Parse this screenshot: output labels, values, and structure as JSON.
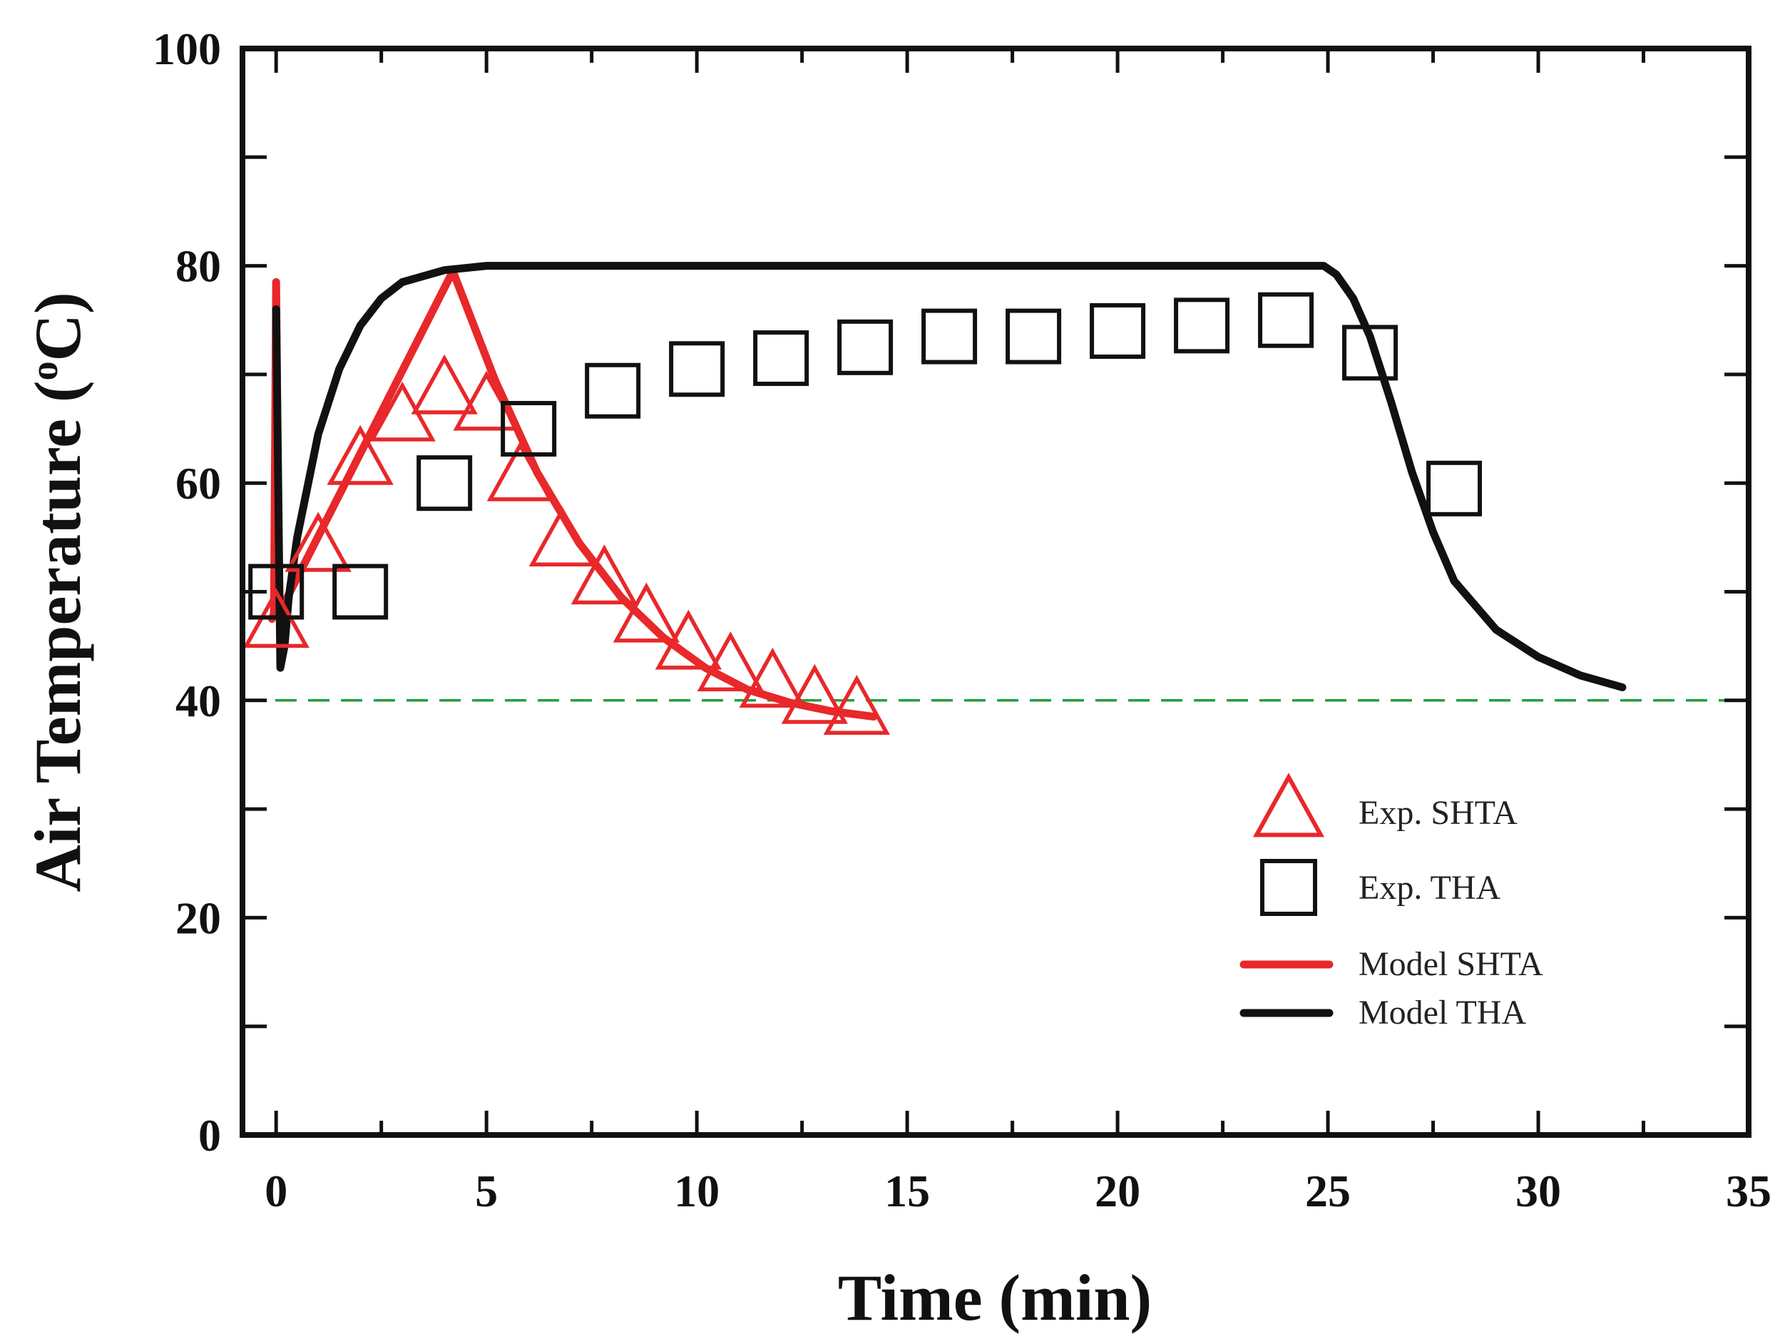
{
  "chart_data": {
    "type": "line",
    "xlabel": "Time (min)",
    "ylabel_main": "Air Temperature (",
    "ylabel_sup": "o",
    "ylabel_end": "C)",
    "xlim": [
      -0.8,
      35
    ],
    "ylim": [
      0,
      100
    ],
    "xticks": [
      0,
      5,
      10,
      15,
      20,
      25,
      30,
      35
    ],
    "yticks": [
      0,
      20,
      40,
      60,
      80,
      100
    ],
    "xtick_labels": [
      "0",
      "5",
      "10",
      "15",
      "20",
      "25",
      "30",
      "35"
    ],
    "ytick_labels": [
      "0",
      "20",
      "40",
      "60",
      "80",
      "100"
    ],
    "reference_line": {
      "y": 40,
      "color": "#22a03c",
      "style": "dashed"
    },
    "series": [
      {
        "name": "Exp. SHTA",
        "kind": "markers",
        "marker": "triangle",
        "color": "#e8282a",
        "x": [
          0,
          1,
          2,
          3,
          4,
          5,
          5.8,
          6.8,
          7.8,
          8.8,
          9.8,
          10.8,
          11.8,
          12.8,
          13.8
        ],
        "y": [
          47,
          54,
          62,
          66,
          68.5,
          67,
          60.5,
          54.5,
          51,
          47.5,
          45,
          43,
          41.5,
          40,
          39
        ]
      },
      {
        "name": "Exp. THA",
        "kind": "markers",
        "marker": "square",
        "color": "#111111",
        "x": [
          0,
          2,
          4,
          6,
          8,
          10,
          12,
          14,
          16,
          18,
          20,
          22,
          24,
          26,
          28
        ],
        "y": [
          50,
          50,
          60,
          65,
          68.5,
          70.5,
          71.5,
          72.5,
          73.5,
          73.5,
          74,
          74.5,
          75,
          72,
          59.5
        ]
      },
      {
        "name": "Model SHTA",
        "kind": "line",
        "color": "#e8282a",
        "x": [
          -0.1,
          -0.05,
          0,
          0.02,
          0.04,
          0.07,
          4.2,
          5.2,
          6.2,
          7.2,
          8.2,
          9.2,
          10.2,
          11.2,
          12.2,
          13.2,
          14.2
        ],
        "y": [
          47.5,
          48,
          78.5,
          70,
          55,
          48,
          79.5,
          69.5,
          61,
          54.5,
          49.5,
          45.8,
          43,
          41,
          39.8,
          39,
          38.5
        ]
      },
      {
        "name": "Model THA",
        "kind": "line",
        "color": "#111111",
        "x": [
          0,
          0.05,
          0.1,
          0.2,
          0.3,
          0.5,
          1,
          1.5,
          2,
          2.5,
          3,
          4,
          5,
          6,
          8,
          10,
          15,
          20,
          24.5,
          24.9,
          25.2,
          25.6,
          26,
          26.5,
          27,
          27.5,
          28,
          29,
          30,
          31,
          32
        ],
        "y": [
          76,
          60,
          43,
          45,
          49.5,
          55,
          64.5,
          70.5,
          74.5,
          77,
          78.5,
          79.6,
          80,
          80,
          80,
          80,
          80,
          80,
          80,
          80,
          79.2,
          77,
          73.5,
          67.5,
          61,
          55.5,
          51,
          46.5,
          44,
          42.3,
          41.2
        ]
      }
    ],
    "legend": {
      "position": "bottom-right",
      "items": [
        {
          "label": "Exp. SHTA",
          "marker": "triangle",
          "color": "#e8282a"
        },
        {
          "label": "Exp. THA",
          "marker": "square",
          "color": "#111111"
        },
        {
          "label": "Model SHTA",
          "marker": "line",
          "color": "#e8282a"
        },
        {
          "label": "Model THA",
          "marker": "line",
          "color": "#111111"
        }
      ]
    }
  }
}
